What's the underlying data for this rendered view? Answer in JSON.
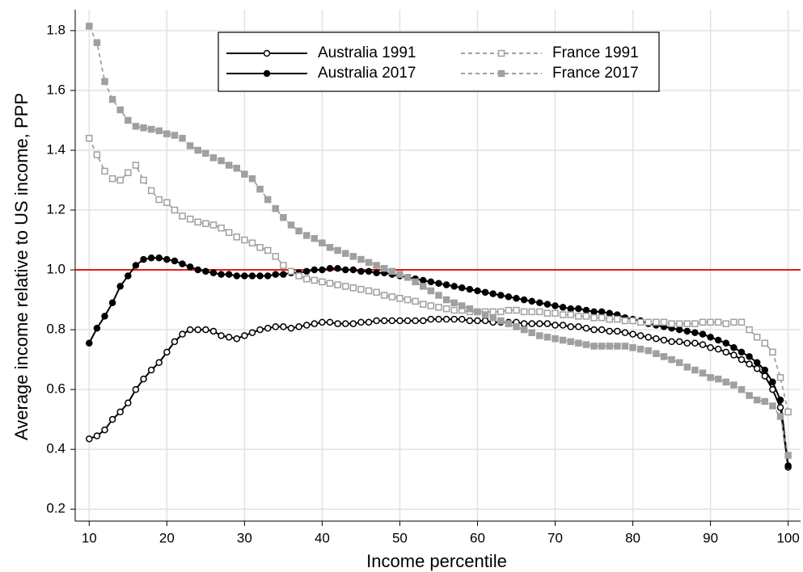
{
  "chart_data": {
    "type": "line",
    "x_label": "Income percentile",
    "y_label": "Average income relative to US income, PPP",
    "x": [
      10,
      11,
      12,
      13,
      14,
      15,
      16,
      17,
      18,
      19,
      20,
      21,
      22,
      23,
      24,
      25,
      26,
      27,
      28,
      29,
      30,
      31,
      32,
      33,
      34,
      35,
      36,
      37,
      38,
      39,
      40,
      41,
      42,
      43,
      44,
      45,
      46,
      47,
      48,
      49,
      50,
      51,
      52,
      53,
      54,
      55,
      56,
      57,
      58,
      59,
      60,
      61,
      62,
      63,
      64,
      65,
      66,
      67,
      68,
      69,
      70,
      71,
      72,
      73,
      74,
      75,
      76,
      77,
      78,
      79,
      80,
      81,
      82,
      83,
      84,
      85,
      86,
      87,
      88,
      89,
      90,
      91,
      92,
      93,
      94,
      95,
      96,
      97,
      98,
      99,
      100
    ],
    "xlim": [
      8.2,
      101.6
    ],
    "ylim": [
      0.16,
      1.87
    ],
    "xticks": [
      10,
      20,
      30,
      40,
      50,
      60,
      70,
      80,
      90,
      100
    ],
    "yticks": [
      0.2,
      0.4,
      0.6,
      0.8,
      {
        "value": 1,
        "label": "1.0"
      },
      1.2,
      1.4,
      1.6,
      1.8
    ],
    "grid": true,
    "legend_position": "top",
    "reference_line": {
      "value": 1,
      "color": "#e41a1c"
    },
    "series": [
      {
        "name": "Australia 1991",
        "color": "#000000",
        "line": "solid",
        "marker": "circle",
        "filled": false,
        "values": [
          0.435,
          0.445,
          0.465,
          0.5,
          0.525,
          0.555,
          0.6,
          0.635,
          0.665,
          0.69,
          0.725,
          0.76,
          0.785,
          0.8,
          0.8,
          0.8,
          0.795,
          0.78,
          0.775,
          0.77,
          0.78,
          0.79,
          0.8,
          0.805,
          0.81,
          0.81,
          0.805,
          0.81,
          0.815,
          0.82,
          0.825,
          0.825,
          0.82,
          0.82,
          0.82,
          0.825,
          0.825,
          0.83,
          0.83,
          0.83,
          0.83,
          0.83,
          0.83,
          0.83,
          0.835,
          0.835,
          0.835,
          0.835,
          0.835,
          0.83,
          0.83,
          0.83,
          0.825,
          0.825,
          0.825,
          0.825,
          0.82,
          0.82,
          0.82,
          0.82,
          0.815,
          0.815,
          0.81,
          0.81,
          0.805,
          0.8,
          0.8,
          0.795,
          0.795,
          0.79,
          0.785,
          0.78,
          0.775,
          0.77,
          0.765,
          0.76,
          0.76,
          0.755,
          0.755,
          0.75,
          0.74,
          0.735,
          0.725,
          0.715,
          0.7,
          0.685,
          0.67,
          0.645,
          0.6,
          0.54,
          0.34
        ]
      },
      {
        "name": "Australia 2017",
        "color": "#000000",
        "line": "solid",
        "marker": "circle",
        "filled": true,
        "values": [
          0.755,
          0.805,
          0.845,
          0.89,
          0.945,
          0.98,
          1.015,
          1.035,
          1.04,
          1.04,
          1.035,
          1.03,
          1.02,
          1.01,
          1.0,
          0.995,
          0.99,
          0.985,
          0.985,
          0.98,
          0.98,
          0.98,
          0.98,
          0.98,
          0.985,
          0.985,
          0.99,
          0.99,
          0.995,
          1.0,
          1.0,
          1.005,
          1.005,
          1.0,
          1.0,
          0.995,
          0.995,
          0.99,
          0.99,
          0.985,
          0.98,
          0.975,
          0.97,
          0.965,
          0.96,
          0.955,
          0.95,
          0.945,
          0.94,
          0.935,
          0.93,
          0.925,
          0.92,
          0.915,
          0.91,
          0.905,
          0.9,
          0.895,
          0.89,
          0.885,
          0.88,
          0.875,
          0.87,
          0.87,
          0.865,
          0.86,
          0.86,
          0.855,
          0.85,
          0.84,
          0.835,
          0.83,
          0.82,
          0.815,
          0.81,
          0.805,
          0.8,
          0.795,
          0.79,
          0.785,
          0.775,
          0.765,
          0.755,
          0.74,
          0.725,
          0.71,
          0.69,
          0.665,
          0.625,
          0.565,
          0.345
        ]
      },
      {
        "name": "France 1991",
        "color": "#a0a0a0",
        "line": "dashed",
        "marker": "square",
        "filled": false,
        "values": [
          1.44,
          1.385,
          1.33,
          1.305,
          1.3,
          1.325,
          1.35,
          1.3,
          1.265,
          1.235,
          1.225,
          1.2,
          1.18,
          1.17,
          1.16,
          1.155,
          1.15,
          1.14,
          1.125,
          1.11,
          1.1,
          1.09,
          1.075,
          1.065,
          1.045,
          1.015,
          0.995,
          0.98,
          0.97,
          0.965,
          0.96,
          0.955,
          0.95,
          0.945,
          0.94,
          0.935,
          0.93,
          0.925,
          0.915,
          0.91,
          0.905,
          0.9,
          0.895,
          0.885,
          0.88,
          0.875,
          0.87,
          0.865,
          0.865,
          0.86,
          0.86,
          0.86,
          0.86,
          0.86,
          0.865,
          0.865,
          0.86,
          0.86,
          0.86,
          0.855,
          0.855,
          0.85,
          0.85,
          0.845,
          0.845,
          0.84,
          0.84,
          0.835,
          0.835,
          0.83,
          0.83,
          0.825,
          0.825,
          0.825,
          0.825,
          0.82,
          0.82,
          0.82,
          0.82,
          0.825,
          0.825,
          0.825,
          0.82,
          0.825,
          0.825,
          0.8,
          0.775,
          0.755,
          0.725,
          0.64,
          0.525
        ]
      },
      {
        "name": "France 2017",
        "color": "#a0a0a0",
        "line": "dashed",
        "marker": "square",
        "filled": true,
        "values": [
          1.815,
          1.76,
          1.63,
          1.57,
          1.535,
          1.5,
          1.48,
          1.475,
          1.47,
          1.465,
          1.455,
          1.45,
          1.44,
          1.415,
          1.4,
          1.39,
          1.375,
          1.365,
          1.35,
          1.34,
          1.32,
          1.305,
          1.27,
          1.235,
          1.205,
          1.175,
          1.15,
          1.13,
          1.115,
          1.105,
          1.09,
          1.075,
          1.065,
          1.055,
          1.045,
          1.035,
          1.025,
          1.015,
          1.005,
          0.995,
          0.985,
          0.975,
          0.96,
          0.945,
          0.93,
          0.915,
          0.9,
          0.89,
          0.88,
          0.87,
          0.86,
          0.85,
          0.84,
          0.83,
          0.82,
          0.81,
          0.8,
          0.79,
          0.78,
          0.775,
          0.77,
          0.765,
          0.76,
          0.755,
          0.75,
          0.745,
          0.745,
          0.745,
          0.745,
          0.745,
          0.74,
          0.735,
          0.73,
          0.72,
          0.71,
          0.7,
          0.69,
          0.675,
          0.665,
          0.655,
          0.64,
          0.635,
          0.625,
          0.615,
          0.6,
          0.58,
          0.565,
          0.56,
          0.545,
          0.51,
          0.38
        ]
      }
    ]
  }
}
